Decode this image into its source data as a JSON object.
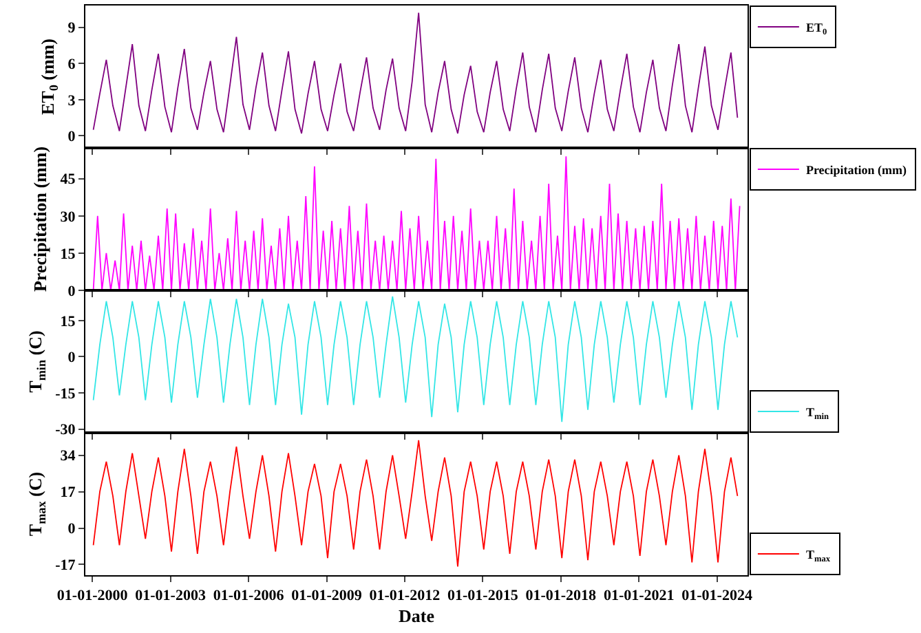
{
  "chart_data": [
    {
      "type": "line",
      "ylabel": "ET$_{0}$ (mm)",
      "legend": "top right",
      "tick_labels": "y",
      "xlim": [
        "1999-09-25",
        "2025-03-05"
      ],
      "xticks": [
        {
          "value": "2000-01-01",
          "label": null
        },
        {
          "value": "2003-01-01",
          "label": null
        },
        {
          "value": "2006-01-01",
          "label": null
        },
        {
          "value": "2009-01-01",
          "label": null
        },
        {
          "value": "2012-01-01",
          "label": null
        },
        {
          "value": "2015-01-01",
          "label": null
        },
        {
          "value": "2018-01-01",
          "label": null
        },
        {
          "value": "2021-01-01",
          "label": null
        },
        {
          "value": "2024-01-01",
          "label": null
        }
      ],
      "ylim": [
        -1,
        10.8
      ],
      "yticks": [
        0,
        3,
        6,
        9
      ],
      "x": [
        "2000-01-15",
        "2000-04-15",
        "2000-07-15",
        "2000-10-15",
        "2001-01-15",
        "2001-04-15",
        "2001-07-15",
        "2001-10-15",
        "2002-01-15",
        "2002-04-15",
        "2002-07-15",
        "2002-10-15",
        "2003-01-15",
        "2003-04-15",
        "2003-07-15",
        "2003-10-15",
        "2004-01-15",
        "2004-04-15",
        "2004-07-15",
        "2004-10-15",
        "2005-01-15",
        "2005-04-15",
        "2005-07-15",
        "2005-10-15",
        "2006-01-15",
        "2006-04-15",
        "2006-07-15",
        "2006-10-15",
        "2007-01-15",
        "2007-04-15",
        "2007-07-15",
        "2007-10-15",
        "2008-01-15",
        "2008-04-15",
        "2008-07-15",
        "2008-10-15",
        "2009-01-15",
        "2009-04-15",
        "2009-07-15",
        "2009-10-15",
        "2010-01-15",
        "2010-04-15",
        "2010-07-15",
        "2010-10-15",
        "2011-01-15",
        "2011-04-15",
        "2011-07-15",
        "2011-10-15",
        "2012-01-15",
        "2012-04-15",
        "2012-07-15",
        "2012-10-15",
        "2013-01-15",
        "2013-04-15",
        "2013-07-15",
        "2013-10-15",
        "2014-01-15",
        "2014-04-15",
        "2014-07-15",
        "2014-10-15",
        "2015-01-15",
        "2015-04-15",
        "2015-07-15",
        "2015-10-15",
        "2016-01-15",
        "2016-04-15",
        "2016-07-15",
        "2016-10-15",
        "2017-01-15",
        "2017-04-15",
        "2017-07-15",
        "2017-10-15",
        "2018-01-15",
        "2018-04-15",
        "2018-07-15",
        "2018-10-15",
        "2019-01-15",
        "2019-04-15",
        "2019-07-15",
        "2019-10-15",
        "2020-01-15",
        "2020-04-15",
        "2020-07-15",
        "2020-10-15",
        "2021-01-15",
        "2021-04-15",
        "2021-07-15",
        "2021-10-15",
        "2022-01-15",
        "2022-04-15",
        "2022-07-15",
        "2022-10-15",
        "2023-01-15",
        "2023-04-15",
        "2023-07-15",
        "2023-10-15",
        "2024-01-15",
        "2024-04-15",
        "2024-07-15",
        "2024-10-15"
      ],
      "series": [
        {
          "name": "ET$_{0}$",
          "color": "#800080",
          "values": [
            0.5,
            3.5,
            6.3,
            2.5,
            0.4,
            4.0,
            7.6,
            2.5,
            0.4,
            3.8,
            6.8,
            2.4,
            0.3,
            4.0,
            7.2,
            2.3,
            0.5,
            3.6,
            6.2,
            2.2,
            0.3,
            4.2,
            8.2,
            2.6,
            0.5,
            4.0,
            6.9,
            2.5,
            0.4,
            3.8,
            7.0,
            2.2,
            0.2,
            3.5,
            6.2,
            2.2,
            0.4,
            3.4,
            6.0,
            2.0,
            0.4,
            3.6,
            6.5,
            2.3,
            0.5,
            3.8,
            6.4,
            2.3,
            0.4,
            4.5,
            10.2,
            2.6,
            0.3,
            3.6,
            6.2,
            2.2,
            0.2,
            3.4,
            5.8,
            2.0,
            0.3,
            3.6,
            6.2,
            2.2,
            0.4,
            3.9,
            6.9,
            2.4,
            0.3,
            3.8,
            6.8,
            2.3,
            0.4,
            3.7,
            6.5,
            2.3,
            0.3,
            3.5,
            6.3,
            2.2,
            0.4,
            3.8,
            6.8,
            2.4,
            0.3,
            3.6,
            6.3,
            2.3,
            0.4,
            4.2,
            7.6,
            2.5,
            0.3,
            4.0,
            7.4,
            2.5,
            0.5,
            3.8,
            6.9,
            1.5
          ]
        }
      ]
    },
    {
      "type": "line",
      "ylabel": "Precipitation (mm)",
      "legend": "top right",
      "tick_labels": "y",
      "xlim": [
        "1999-09-25",
        "2025-03-05"
      ],
      "xticks": [
        {
          "value": "2000-01-01",
          "label": null
        },
        {
          "value": "2003-01-01",
          "label": null
        },
        {
          "value": "2006-01-01",
          "label": null
        },
        {
          "value": "2009-01-01",
          "label": null
        },
        {
          "value": "2012-01-01",
          "label": null
        },
        {
          "value": "2015-01-01",
          "label": null
        },
        {
          "value": "2018-01-01",
          "label": null
        },
        {
          "value": "2021-01-01",
          "label": null
        },
        {
          "value": "2024-01-01",
          "label": null
        }
      ],
      "ylim": [
        0,
        57.4
      ],
      "yticks": [
        0,
        15,
        30,
        45
      ],
      "x": [
        "2000-01-15",
        "2000-03-15",
        "2000-05-15",
        "2000-07-15",
        "2000-09-15",
        "2000-11-15",
        "2001-01-15",
        "2001-03-15",
        "2001-05-15",
        "2001-07-15",
        "2001-09-15",
        "2001-11-15",
        "2002-01-15",
        "2002-03-15",
        "2002-05-15",
        "2002-07-15",
        "2002-09-15",
        "2002-11-15",
        "2003-01-15",
        "2003-03-15",
        "2003-05-15",
        "2003-07-15",
        "2003-09-15",
        "2003-11-15",
        "2004-01-15",
        "2004-03-15",
        "2004-05-15",
        "2004-07-15",
        "2004-09-15",
        "2004-11-15",
        "2005-01-15",
        "2005-03-15",
        "2005-05-15",
        "2005-07-15",
        "2005-09-15",
        "2005-11-15",
        "2006-01-15",
        "2006-03-15",
        "2006-05-15",
        "2006-07-15",
        "2006-09-15",
        "2006-11-15",
        "2007-01-15",
        "2007-03-15",
        "2007-05-15",
        "2007-07-15",
        "2007-09-15",
        "2007-11-15",
        "2008-01-15",
        "2008-03-15",
        "2008-05-15",
        "2008-07-15",
        "2008-09-15",
        "2008-11-15",
        "2009-01-15",
        "2009-03-15",
        "2009-05-15",
        "2009-07-15",
        "2009-09-15",
        "2009-11-15",
        "2010-01-15",
        "2010-03-15",
        "2010-05-15",
        "2010-07-15",
        "2010-09-15",
        "2010-11-15",
        "2011-01-15",
        "2011-03-15",
        "2011-05-15",
        "2011-07-15",
        "2011-09-15",
        "2011-11-15",
        "2012-01-15",
        "2012-03-15",
        "2012-05-15",
        "2012-07-15",
        "2012-09-15",
        "2012-11-15",
        "2013-01-15",
        "2013-03-15",
        "2013-05-15",
        "2013-07-15",
        "2013-09-15",
        "2013-11-15",
        "2014-01-15",
        "2014-03-15",
        "2014-05-15",
        "2014-07-15",
        "2014-09-15",
        "2014-11-15",
        "2015-01-15",
        "2015-03-15",
        "2015-05-15",
        "2015-07-15",
        "2015-09-15",
        "2015-11-15",
        "2016-01-15",
        "2016-03-15",
        "2016-05-15",
        "2016-07-15",
        "2016-09-15",
        "2016-11-15",
        "2017-01-15",
        "2017-03-15",
        "2017-05-15",
        "2017-07-15",
        "2017-09-15",
        "2017-11-15",
        "2018-01-15",
        "2018-03-15",
        "2018-05-15",
        "2018-07-15",
        "2018-09-15",
        "2018-11-15",
        "2019-01-15",
        "2019-03-15",
        "2019-05-15",
        "2019-07-15",
        "2019-09-15",
        "2019-11-15",
        "2020-01-15",
        "2020-03-15",
        "2020-05-15",
        "2020-07-15",
        "2020-09-15",
        "2020-11-15",
        "2021-01-15",
        "2021-03-15",
        "2021-05-15",
        "2021-07-15",
        "2021-09-15",
        "2021-11-15",
        "2022-01-15",
        "2022-03-15",
        "2022-05-15",
        "2022-07-15",
        "2022-09-15",
        "2022-11-15",
        "2023-01-15",
        "2023-03-15",
        "2023-05-15",
        "2023-07-15",
        "2023-09-15",
        "2023-11-15",
        "2024-01-15",
        "2024-03-15",
        "2024-05-15",
        "2024-07-15",
        "2024-09-15",
        "2024-11-15"
      ],
      "series": [
        {
          "name": "Precipitation (mm)",
          "color": "#ff00ff",
          "values": [
            0,
            30,
            0,
            15,
            0,
            12,
            0,
            31,
            0,
            18,
            0,
            20,
            0,
            14,
            0,
            22,
            0,
            33,
            0,
            31,
            0,
            19,
            0,
            25,
            0,
            20,
            0,
            33,
            0,
            15,
            0,
            21,
            0,
            32,
            0,
            20,
            0,
            24,
            0,
            29,
            0,
            18,
            0,
            25,
            0,
            30,
            0,
            20,
            0,
            38,
            0,
            50,
            0,
            24,
            0,
            28,
            0,
            25,
            0,
            34,
            0,
            24,
            0,
            35,
            0,
            20,
            0,
            22,
            0,
            20,
            0,
            32,
            0,
            25,
            0,
            30,
            0,
            20,
            0,
            53,
            0,
            28,
            0,
            30,
            0,
            24,
            0,
            33,
            0,
            20,
            0,
            20,
            0,
            30,
            0,
            25,
            0,
            41,
            0,
            28,
            0,
            20,
            0,
            30,
            0,
            43,
            0,
            22,
            0,
            54,
            0,
            26,
            0,
            29,
            0,
            25,
            0,
            30,
            0,
            43,
            0,
            31,
            0,
            28,
            0,
            25,
            0,
            26,
            0,
            28,
            0,
            43,
            0,
            28,
            0,
            29,
            0,
            25,
            0,
            30,
            0,
            22,
            0,
            28,
            0,
            26,
            0,
            37,
            0,
            34
          ]
        }
      ]
    },
    {
      "type": "line",
      "ylabel": "T$_{min}$ (C)",
      "legend": "bottom right",
      "tick_labels": "y",
      "xlim": [
        "1999-09-25",
        "2025-03-05"
      ],
      "xticks": [
        {
          "value": "2000-01-01",
          "label": null
        },
        {
          "value": "2003-01-01",
          "label": null
        },
        {
          "value": "2006-01-01",
          "label": null
        },
        {
          "value": "2009-01-01",
          "label": null
        },
        {
          "value": "2012-01-01",
          "label": null
        },
        {
          "value": "2015-01-01",
          "label": null
        },
        {
          "value": "2018-01-01",
          "label": null
        },
        {
          "value": "2021-01-01",
          "label": null
        },
        {
          "value": "2024-01-01",
          "label": null
        }
      ],
      "ylim": [
        -31.5,
        27.5
      ],
      "yticks": [
        -30,
        -15,
        0,
        15
      ],
      "x": [
        "2000-01-15",
        "2000-04-15",
        "2000-07-15",
        "2000-10-15",
        "2001-01-15",
        "2001-04-15",
        "2001-07-15",
        "2001-10-15",
        "2002-01-15",
        "2002-04-15",
        "2002-07-15",
        "2002-10-15",
        "2003-01-15",
        "2003-04-15",
        "2003-07-15",
        "2003-10-15",
        "2004-01-15",
        "2004-04-15",
        "2004-07-15",
        "2004-10-15",
        "2005-01-15",
        "2005-04-15",
        "2005-07-15",
        "2005-10-15",
        "2006-01-15",
        "2006-04-15",
        "2006-07-15",
        "2006-10-15",
        "2007-01-15",
        "2007-04-15",
        "2007-07-15",
        "2007-10-15",
        "2008-01-15",
        "2008-04-15",
        "2008-07-15",
        "2008-10-15",
        "2009-01-15",
        "2009-04-15",
        "2009-07-15",
        "2009-10-15",
        "2010-01-15",
        "2010-04-15",
        "2010-07-15",
        "2010-10-15",
        "2011-01-15",
        "2011-04-15",
        "2011-07-15",
        "2011-10-15",
        "2012-01-15",
        "2012-04-15",
        "2012-07-15",
        "2012-10-15",
        "2013-01-15",
        "2013-04-15",
        "2013-07-15",
        "2013-10-15",
        "2014-01-15",
        "2014-04-15",
        "2014-07-15",
        "2014-10-15",
        "2015-01-15",
        "2015-04-15",
        "2015-07-15",
        "2015-10-15",
        "2016-01-15",
        "2016-04-15",
        "2016-07-15",
        "2016-10-15",
        "2017-01-15",
        "2017-04-15",
        "2017-07-15",
        "2017-10-15",
        "2018-01-15",
        "2018-04-15",
        "2018-07-15",
        "2018-10-15",
        "2019-01-15",
        "2019-04-15",
        "2019-07-15",
        "2019-10-15",
        "2020-01-15",
        "2020-04-15",
        "2020-07-15",
        "2020-10-15",
        "2021-01-15",
        "2021-04-15",
        "2021-07-15",
        "2021-10-15",
        "2022-01-15",
        "2022-04-15",
        "2022-07-15",
        "2022-10-15",
        "2023-01-15",
        "2023-04-15",
        "2023-07-15",
        "2023-10-15",
        "2024-01-15",
        "2024-04-15",
        "2024-07-15",
        "2024-10-15"
      ],
      "series": [
        {
          "name": "T$_{min}$",
          "color": "#33e6e6",
          "values": [
            -18,
            5,
            23,
            8,
            -16,
            5,
            23,
            8,
            -18,
            5,
            23,
            8,
            -19,
            5,
            23,
            8,
            -17,
            5,
            24,
            8,
            -19,
            5,
            24,
            8,
            -20,
            5,
            24,
            8,
            -20,
            5,
            22,
            8,
            -24,
            5,
            23,
            8,
            -20,
            5,
            23,
            8,
            -20,
            5,
            23,
            8,
            -17,
            5,
            25,
            8,
            -19,
            5,
            23,
            8,
            -25,
            5,
            22,
            8,
            -23,
            5,
            23,
            8,
            -20,
            5,
            23,
            8,
            -20,
            5,
            23,
            8,
            -20,
            5,
            23,
            8,
            -27,
            5,
            23,
            8,
            -22,
            5,
            23,
            8,
            -19,
            5,
            23,
            8,
            -20,
            5,
            23,
            8,
            -17,
            5,
            23,
            8,
            -22,
            5,
            23,
            8,
            -22,
            5,
            23,
            8
          ]
        }
      ]
    },
    {
      "type": "line",
      "ylabel": "T$_{max}$ (C)",
      "xlabel": "Date",
      "legend": "bottom right",
      "xlim": [
        "1999-09-25",
        "2025-03-05"
      ],
      "xticks": [
        {
          "value": "2000-01-01",
          "label": "01-01-2000"
        },
        {
          "value": "2003-01-01",
          "label": "01-01-2003"
        },
        {
          "value": "2006-01-01",
          "label": "01-01-2006"
        },
        {
          "value": "2009-01-01",
          "label": "01-01-2009"
        },
        {
          "value": "2012-01-01",
          "label": "01-01-2012"
        },
        {
          "value": "2015-01-01",
          "label": "01-01-2015"
        },
        {
          "value": "2018-01-01",
          "label": "01-01-2018"
        },
        {
          "value": "2021-01-01",
          "label": "01-01-2021"
        },
        {
          "value": "2024-01-01",
          "label": "01-01-2024"
        }
      ],
      "ylim": [
        -22,
        44.5
      ],
      "yticks": [
        -17,
        0,
        17,
        34
      ],
      "x": [
        "2000-01-15",
        "2000-04-15",
        "2000-07-15",
        "2000-10-15",
        "2001-01-15",
        "2001-04-15",
        "2001-07-15",
        "2001-10-15",
        "2002-01-15",
        "2002-04-15",
        "2002-07-15",
        "2002-10-15",
        "2003-01-15",
        "2003-04-15",
        "2003-07-15",
        "2003-10-15",
        "2004-01-15",
        "2004-04-15",
        "2004-07-15",
        "2004-10-15",
        "2005-01-15",
        "2005-04-15",
        "2005-07-15",
        "2005-10-15",
        "2006-01-15",
        "2006-04-15",
        "2006-07-15",
        "2006-10-15",
        "2007-01-15",
        "2007-04-15",
        "2007-07-15",
        "2007-10-15",
        "2008-01-15",
        "2008-04-15",
        "2008-07-15",
        "2008-10-15",
        "2009-01-15",
        "2009-04-15",
        "2009-07-15",
        "2009-10-15",
        "2010-01-15",
        "2010-04-15",
        "2010-07-15",
        "2010-10-15",
        "2011-01-15",
        "2011-04-15",
        "2011-07-15",
        "2011-10-15",
        "2012-01-15",
        "2012-04-15",
        "2012-07-15",
        "2012-10-15",
        "2013-01-15",
        "2013-04-15",
        "2013-07-15",
        "2013-10-15",
        "2014-01-15",
        "2014-04-15",
        "2014-07-15",
        "2014-10-15",
        "2015-01-15",
        "2015-04-15",
        "2015-07-15",
        "2015-10-15",
        "2016-01-15",
        "2016-04-15",
        "2016-07-15",
        "2016-10-15",
        "2017-01-15",
        "2017-04-15",
        "2017-07-15",
        "2017-10-15",
        "2018-01-15",
        "2018-04-15",
        "2018-07-15",
        "2018-10-15",
        "2019-01-15",
        "2019-04-15",
        "2019-07-15",
        "2019-10-15",
        "2020-01-15",
        "2020-04-15",
        "2020-07-15",
        "2020-10-15",
        "2021-01-15",
        "2021-04-15",
        "2021-07-15",
        "2021-10-15",
        "2022-01-15",
        "2022-04-15",
        "2022-07-15",
        "2022-10-15",
        "2023-01-15",
        "2023-04-15",
        "2023-07-15",
        "2023-10-15",
        "2024-01-15",
        "2024-04-15",
        "2024-07-15",
        "2024-10-15"
      ],
      "series": [
        {
          "name": "T$_{max}$",
          "color": "#ff0000",
          "values": [
            -8,
            17,
            31,
            15,
            -8,
            17,
            35,
            15,
            -5,
            17,
            33,
            15,
            -11,
            17,
            37,
            15,
            -12,
            17,
            31,
            15,
            -8,
            17,
            38,
            15,
            -5,
            17,
            34,
            15,
            -11,
            17,
            35,
            15,
            -8,
            17,
            30,
            15,
            -14,
            17,
            30,
            15,
            -10,
            17,
            32,
            15,
            -10,
            17,
            34,
            15,
            -5,
            17,
            41,
            15,
            -6,
            17,
            33,
            15,
            -18,
            17,
            31,
            15,
            -10,
            17,
            31,
            15,
            -12,
            17,
            31,
            15,
            -10,
            17,
            32,
            15,
            -14,
            17,
            32,
            15,
            -15,
            17,
            31,
            15,
            -8,
            17,
            31,
            15,
            -13,
            17,
            32,
            15,
            -8,
            17,
            34,
            15,
            -16,
            17,
            37,
            15,
            -16,
            17,
            33,
            15
          ]
        }
      ]
    }
  ]
}
